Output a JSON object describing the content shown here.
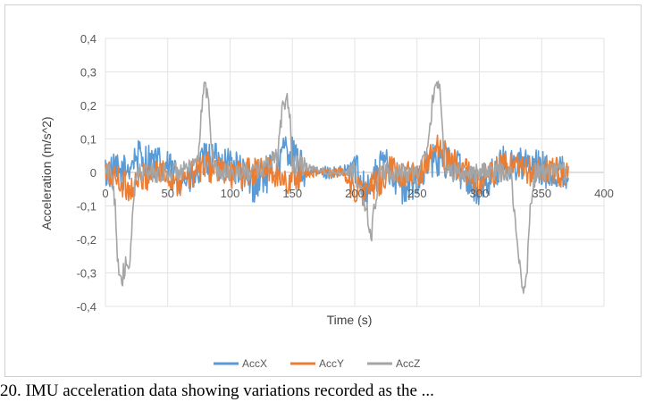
{
  "chart_data": {
    "type": "line",
    "title": "",
    "xlabel": "Time (s)",
    "ylabel": "Acceleration (m/s^2)",
    "xlim": [
      0,
      400
    ],
    "ylim": [
      -0.4,
      0.4
    ],
    "x_ticks": [
      "0",
      "50",
      "100",
      "150",
      "200",
      "250",
      "300",
      "350",
      "400"
    ],
    "y_ticks": [
      "0,4",
      "0,3",
      "0,2",
      "0,1",
      "0",
      "-0,1",
      "-0,2",
      "-0,3",
      "-0,4"
    ],
    "grid": true,
    "legend_position": "bottom",
    "series": [
      {
        "name": "AccX",
        "color": "#5b9bd5",
        "noise": 0.055,
        "points": [
          [
            0,
            0
          ],
          [
            15,
            0
          ],
          [
            25,
            0.05
          ],
          [
            45,
            0.02
          ],
          [
            70,
            -0.03
          ],
          [
            80,
            0.04
          ],
          [
            100,
            0.03
          ],
          [
            120,
            -0.04
          ],
          [
            140,
            0.03
          ],
          [
            145,
            0.08
          ],
          [
            160,
            0
          ],
          [
            190,
            0
          ],
          [
            200,
            0.02
          ],
          [
            210,
            -0.05
          ],
          [
            225,
            0.04
          ],
          [
            240,
            -0.06
          ],
          [
            260,
            0.03
          ],
          [
            275,
            0.04
          ],
          [
            300,
            -0.05
          ],
          [
            320,
            0.03
          ],
          [
            340,
            0.02
          ],
          [
            360,
            0
          ],
          [
            372,
            0
          ]
        ]
      },
      {
        "name": "AccY",
        "color": "#ed7d31",
        "noise": 0.045,
        "points": [
          [
            0,
            0
          ],
          [
            10,
            -0.02
          ],
          [
            20,
            -0.05
          ],
          [
            40,
            0.01
          ],
          [
            60,
            -0.03
          ],
          [
            80,
            0.02
          ],
          [
            100,
            -0.01
          ],
          [
            130,
            0.01
          ],
          [
            145,
            -0.03
          ],
          [
            160,
            0
          ],
          [
            190,
            0
          ],
          [
            200,
            -0.05
          ],
          [
            210,
            -0.06
          ],
          [
            230,
            0.01
          ],
          [
            250,
            -0.02
          ],
          [
            265,
            0.08
          ],
          [
            275,
            0.04
          ],
          [
            300,
            -0.03
          ],
          [
            320,
            0.02
          ],
          [
            340,
            0
          ],
          [
            360,
            0
          ],
          [
            372,
            0
          ]
        ]
      },
      {
        "name": "AccZ",
        "color": "#a5a5a5",
        "noise": 0.03,
        "points": [
          [
            0,
            0
          ],
          [
            5,
            0
          ],
          [
            8,
            -0.1
          ],
          [
            10,
            -0.27
          ],
          [
            13,
            -0.32
          ],
          [
            16,
            -0.28
          ],
          [
            19,
            -0.31
          ],
          [
            22,
            -0.1
          ],
          [
            25,
            0
          ],
          [
            55,
            0
          ],
          [
            70,
            0.01
          ],
          [
            75,
            0.05
          ],
          [
            77,
            0.2
          ],
          [
            80,
            0.26
          ],
          [
            83,
            0.2
          ],
          [
            86,
            0.05
          ],
          [
            90,
            0
          ],
          [
            120,
            0
          ],
          [
            138,
            0.05
          ],
          [
            142,
            0.18
          ],
          [
            145,
            0.23
          ],
          [
            148,
            0.17
          ],
          [
            150,
            0.02
          ],
          [
            160,
            0.02
          ],
          [
            180,
            0
          ],
          [
            200,
            0
          ],
          [
            210,
            -0.12
          ],
          [
            213,
            -0.2
          ],
          [
            216,
            -0.1
          ],
          [
            220,
            0
          ],
          [
            250,
            0
          ],
          [
            258,
            0.05
          ],
          [
            262,
            0.2
          ],
          [
            266,
            0.27
          ],
          [
            268,
            0.28
          ],
          [
            270,
            0.15
          ],
          [
            273,
            0
          ],
          [
            300,
            0
          ],
          [
            325,
            0
          ],
          [
            328,
            -0.1
          ],
          [
            331,
            -0.25
          ],
          [
            335,
            -0.35
          ],
          [
            338,
            -0.3
          ],
          [
            341,
            -0.1
          ],
          [
            345,
            0
          ],
          [
            372,
            0
          ]
        ]
      }
    ]
  },
  "caption": "20. IMU acceleration data showing variations recorded as the ..."
}
